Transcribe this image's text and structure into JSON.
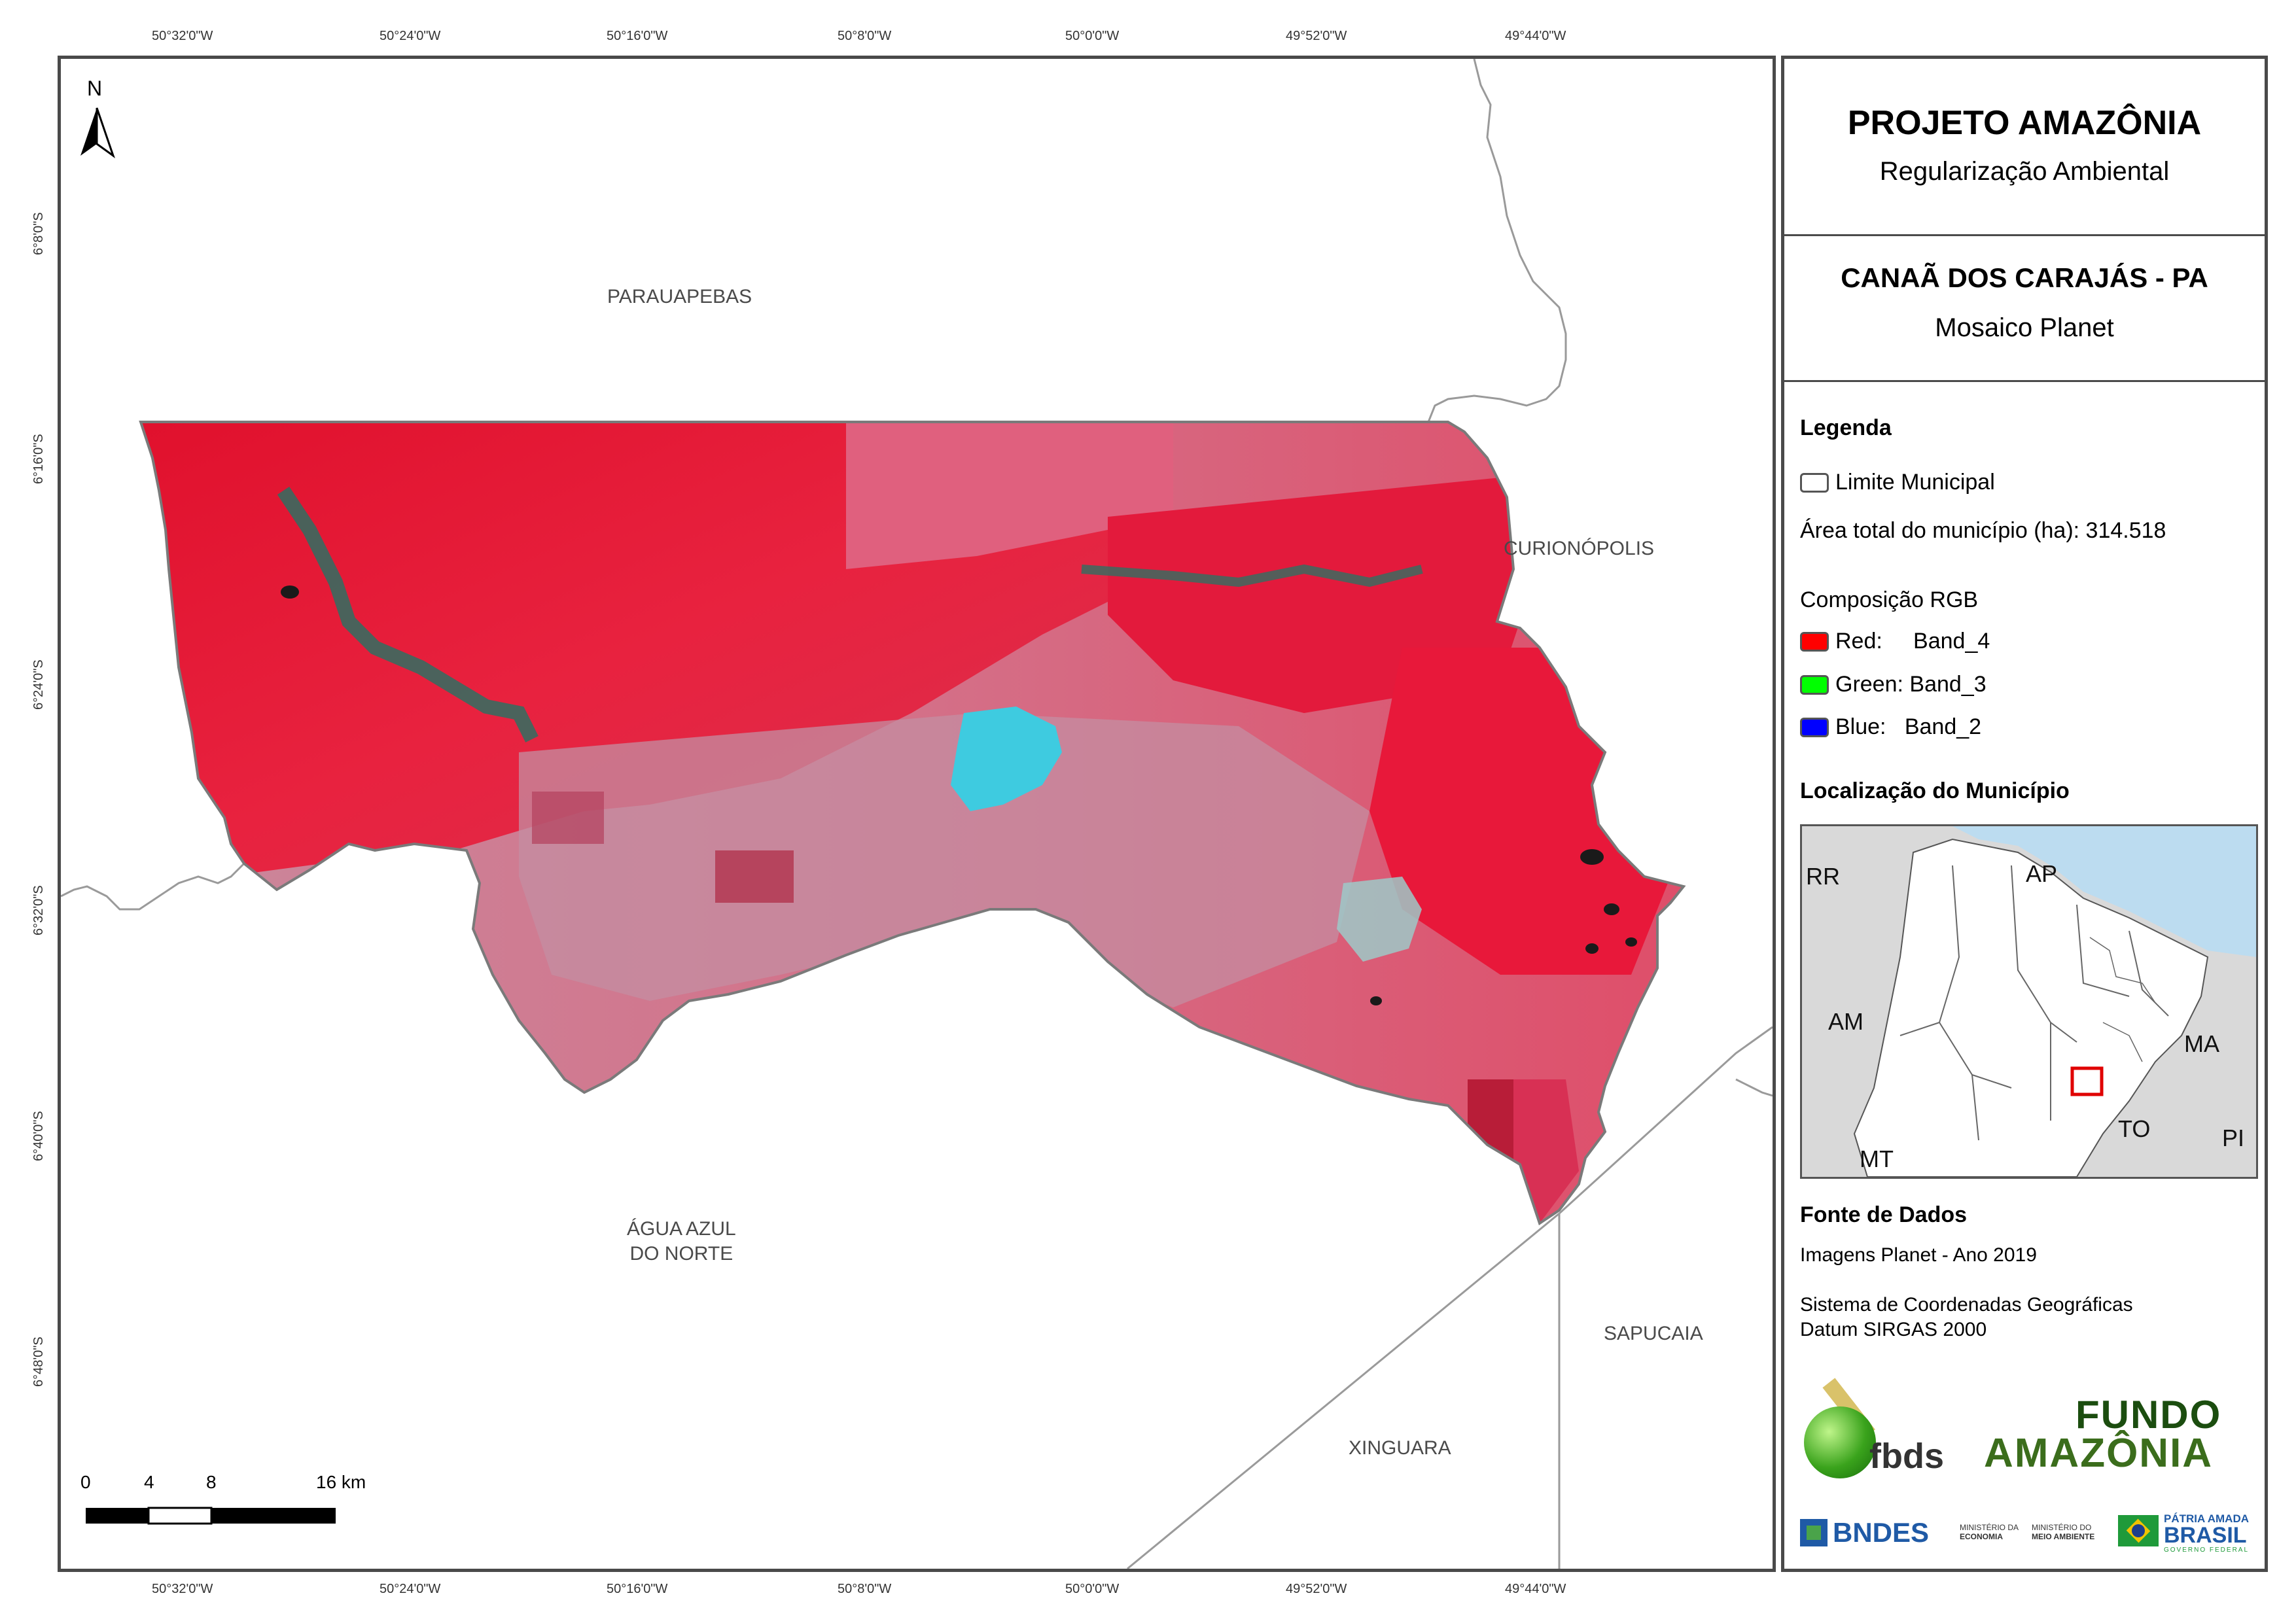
{
  "map": {
    "top_coords": [
      "50°32'0\"W",
      "50°24'0\"W",
      "50°16'0\"W",
      "50°8'0\"W",
      "50°0'0\"W",
      "49°52'0\"W",
      "49°44'0\"W"
    ],
    "bottom_coords": [
      "50°32'0\"W",
      "50°24'0\"W",
      "50°16'0\"W",
      "50°8'0\"W",
      "50°0'0\"W",
      "49°52'0\"W",
      "49°44'0\"W"
    ],
    "left_coords": [
      "6°8'0\"S",
      "6°16'0\"S",
      "6°24'0\"S",
      "6°32'0\"S",
      "6°40'0\"S",
      "6°48'0\"S"
    ],
    "north_label": "N",
    "neighbors": {
      "parauapebas": "PARAUAPEBAS",
      "curionopolis": "CURIONÓPOLIS",
      "agua_azul_1": "ÁGUA AZUL",
      "agua_azul_2": "DO NORTE",
      "sapucaia": "SAPUCAIA",
      "xinguara": "XINGUARA"
    },
    "scale": {
      "t0": "0",
      "t1": "4",
      "t2": "8",
      "t3": "16 km"
    }
  },
  "panel": {
    "title": "PROJETO AMAZÔNIA",
    "subtitle": "Regularização Ambiental",
    "municipality": "CANAÃ DOS CARAJÁS - PA",
    "mosaic": "Mosaico Planet",
    "legend_title": "Legenda",
    "legend_limit": "Limite Municipal",
    "legend_area": "Área total do município (ha): 314.518",
    "rgb_title": "Composição RGB",
    "rgb": [
      {
        "label": "Red:     Band_4",
        "color": "#ff0000"
      },
      {
        "label": "Green: Band_3",
        "color": "#00ff00"
      },
      {
        "label": "Blue:   Band_2",
        "color": "#0000ff"
      }
    ],
    "location_title": "Localização do Município",
    "location_labels": {
      "rr": "RR",
      "ap": "AP",
      "am": "AM",
      "ma": "MA",
      "to": "TO",
      "pi": "PI",
      "mt": "MT"
    },
    "source_title": "Fonte de Dados",
    "source_1": "Imagens Planet - Ano 2019",
    "source_2": "Sistema de Coordenadas Geográficas",
    "source_3": "Datum SIRGAS 2000",
    "logos": {
      "fbds": "fbds",
      "fundo_1": "FUNDO",
      "fundo_2": "AMAZÔNIA",
      "bndes": "BNDES",
      "min_eco_1": "MINISTÉRIO DA",
      "min_eco_2": "ECONOMIA",
      "min_ma_1": "MINISTÉRIO DO",
      "min_ma_2": "MEIO AMBIENTE",
      "patria_1": "PÁTRIA AMADA",
      "patria_2": "BRASIL",
      "patria_3": "GOVERNO FEDERAL"
    }
  }
}
